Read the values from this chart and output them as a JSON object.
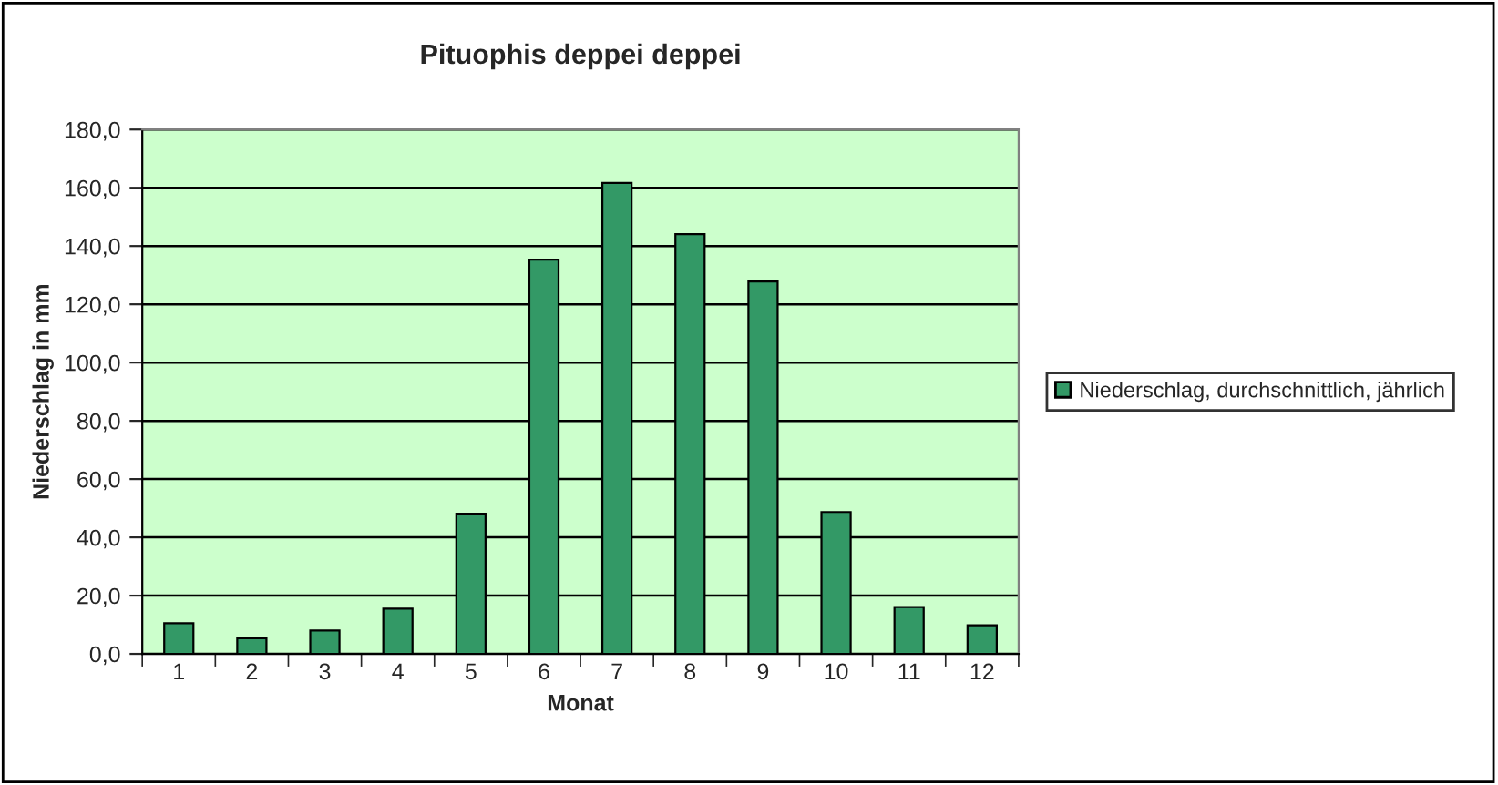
{
  "chart_data": {
    "type": "bar",
    "title": "Pituophis deppei deppei",
    "xlabel": "Monat",
    "ylabel": "Niederschlag in mm",
    "categories": [
      "1",
      "2",
      "3",
      "4",
      "5",
      "6",
      "7",
      "8",
      "9",
      "10",
      "11",
      "12"
    ],
    "series": [
      {
        "name": "Niederschlag, durchschnittlich, jährlich",
        "color": "#339966",
        "values": [
          10.5,
          5.4,
          8.0,
          15.5,
          48.1,
          135.3,
          161.7,
          144.1,
          127.8,
          48.7,
          16.1,
          9.8
        ]
      }
    ],
    "ylim": [
      0,
      180
    ],
    "yticks": [
      {
        "value": 0,
        "label": "0,0"
      },
      {
        "value": 20,
        "label": "20,0"
      },
      {
        "value": 40,
        "label": "40,0"
      },
      {
        "value": 60,
        "label": "60,0"
      },
      {
        "value": 80,
        "label": "80,0"
      },
      {
        "value": 100,
        "label": "100,0"
      },
      {
        "value": 120,
        "label": "120,0"
      },
      {
        "value": 140,
        "label": "140,0"
      },
      {
        "value": 160,
        "label": "160,0"
      },
      {
        "value": 180,
        "label": "180,0"
      }
    ],
    "grid": "y",
    "legend": "right"
  }
}
